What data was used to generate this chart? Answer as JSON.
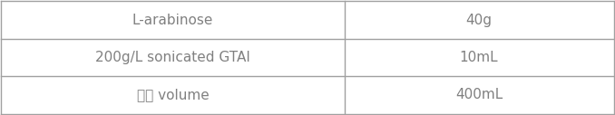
{
  "col1_labels": [
    "L-arabinose",
    "200g/L sonicated GTAI",
    "최종 volume"
  ],
  "col2_labels": [
    "40g",
    "10mL",
    "400mL"
  ],
  "col_split": 0.56,
  "text_color": "#808080",
  "line_color": "#a0a0a0",
  "bg_color": "#ffffff",
  "font_size": 11
}
